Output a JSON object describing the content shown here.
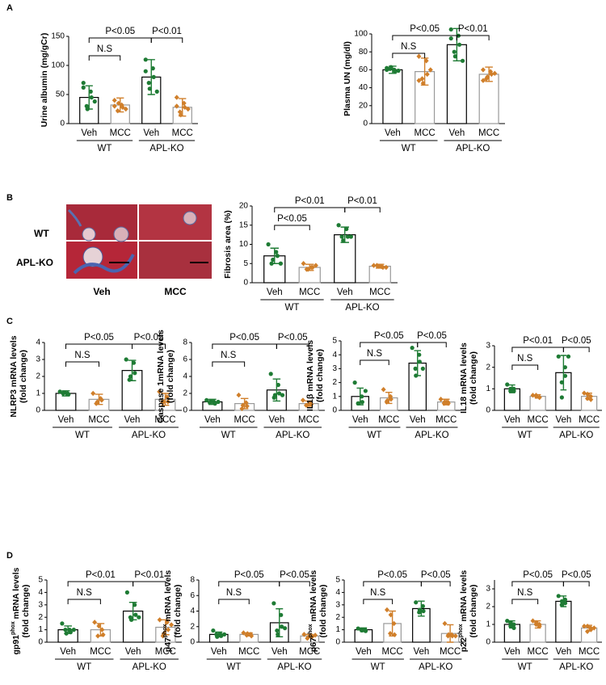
{
  "panels": [
    "A",
    "B",
    "C",
    "D"
  ],
  "histology": {
    "rows": [
      "WT",
      "APL-KO"
    ],
    "cols": [
      "Veh",
      "MCC"
    ]
  },
  "chart_data": [
    {
      "type": "bar",
      "ylabel": [
        [
          "Urine albumin (mg/gCr)"
        ]
      ],
      "categories": [
        "Veh",
        "MCC",
        "Veh",
        "MCC"
      ],
      "groups": [
        "WT",
        "APL-KO"
      ],
      "values": [
        45,
        32,
        80,
        28
      ],
      "errors": [
        20,
        12,
        30,
        15
      ],
      "points": [
        [
          62,
          55,
          45,
          30,
          25,
          38,
          70
        ],
        [
          40,
          32,
          28,
          22,
          35,
          25,
          30
        ],
        [
          110,
          95,
          80,
          70,
          60,
          55,
          90
        ],
        [
          45,
          35,
          28,
          20,
          15,
          25,
          30
        ]
      ],
      "bar_colors": [
        "#1e7b34",
        "#d07f2a",
        "#1e7b34",
        "#d07f2a"
      ],
      "ylim": [
        0,
        150
      ],
      "yticks": [
        0,
        50,
        100,
        150
      ],
      "brackets": [
        {
          "label": "N.S",
          "from": 0,
          "to": 1
        },
        {
          "label": "P<0.05",
          "from": 0,
          "to": 2
        },
        {
          "label": "P<0.01",
          "from": 2,
          "to": 3
        }
      ]
    },
    {
      "type": "bar",
      "ylabel": [
        [
          "Plasma UN (mg/dl)"
        ]
      ],
      "categories": [
        "Veh",
        "MCC",
        "Veh",
        "MCC"
      ],
      "groups": [
        "WT",
        "APL-KO"
      ],
      "values": [
        60,
        58,
        88,
        55
      ],
      "errors": [
        4,
        15,
        18,
        8
      ],
      "points": [
        [
          62,
          60,
          58,
          61,
          63,
          59,
          60
        ],
        [
          75,
          70,
          55,
          50,
          45,
          60,
          48
        ],
        [
          105,
          98,
          88,
          80,
          75,
          70,
          95
        ],
        [
          60,
          58,
          55,
          50,
          52,
          56,
          48
        ]
      ],
      "bar_colors": [
        "#1e7b34",
        "#d07f2a",
        "#1e7b34",
        "#d07f2a"
      ],
      "ylim": [
        0,
        100
      ],
      "yticks": [
        0,
        20,
        40,
        60,
        80,
        100
      ],
      "brackets": [
        {
          "label": "N.S",
          "from": 0,
          "to": 1
        },
        {
          "label": "P<0.05",
          "from": 0,
          "to": 2
        },
        {
          "label": "P<0.01",
          "from": 2,
          "to": 3
        }
      ]
    },
    {
      "type": "bar",
      "ylabel": [
        [
          "Fibrosis  area (%)"
        ]
      ],
      "categories": [
        "Veh",
        "MCC",
        "Veh",
        "MCC"
      ],
      "groups": [
        "WT",
        "APL-KO"
      ],
      "values": [
        7,
        4,
        12.5,
        4.3
      ],
      "errors": [
        2,
        0.8,
        2,
        0.5
      ],
      "points": [
        [
          10,
          8,
          7,
          5,
          6,
          5
        ],
        [
          5,
          4,
          4,
          3.5,
          3.5,
          4.5
        ],
        [
          15,
          14,
          12,
          12,
          11,
          12
        ],
        [
          4.5,
          4.2,
          4,
          4.5,
          4.3,
          4
        ]
      ],
      "bar_colors": [
        "#1e7b34",
        "#d07f2a",
        "#1e7b34",
        "#d07f2a"
      ],
      "ylim": [
        0,
        20
      ],
      "yticks": [
        0,
        5,
        10,
        15,
        20
      ],
      "brackets": [
        {
          "label": "P<0.05",
          "from": 0,
          "to": 1
        },
        {
          "label": "P<0.01",
          "from": 0,
          "to": 2
        },
        {
          "label": "P<0.01",
          "from": 2,
          "to": 3
        }
      ]
    },
    {
      "type": "bar",
      "ylabel": [
        [
          "NLRP3 mRNA levels"
        ],
        [
          "(fold change)"
        ]
      ],
      "categories": [
        "Veh",
        "MCC",
        "Veh",
        "MCC"
      ],
      "groups": [
        "WT",
        "APL-KO"
      ],
      "values": [
        1,
        0.65,
        2.35,
        0.65
      ],
      "errors": [
        0.15,
        0.3,
        0.6,
        0.35
      ],
      "points": [
        [
          1.1,
          1,
          0.95,
          1,
          1.05
        ],
        [
          1,
          0.7,
          0.6,
          0.4,
          0.5
        ],
        [
          3,
          2.8,
          2.2,
          1.8,
          2
        ],
        [
          1.1,
          0.8,
          0.5,
          0.5,
          0.5
        ]
      ],
      "bar_colors": [
        "#1e7b34",
        "#d07f2a",
        "#1e7b34",
        "#d07f2a"
      ],
      "ylim": [
        0,
        4
      ],
      "yticks": [
        0,
        1,
        2,
        3,
        4
      ],
      "brackets": [
        {
          "label": "N.S",
          "from": 0,
          "to": 1
        },
        {
          "label": "P<0.05",
          "from": 0,
          "to": 2
        },
        {
          "label": "P<0.05",
          "from": 2,
          "to": 3
        }
      ]
    },
    {
      "type": "bar",
      "ylabel": [
        [
          "Caspase 1mRNA levels"
        ],
        [
          "(fold change)"
        ]
      ],
      "categories": [
        "Veh",
        "MCC",
        "Veh",
        "MCC"
      ],
      "groups": [
        "WT",
        "APL-KO"
      ],
      "values": [
        1,
        0.8,
        2.4,
        0.8
      ],
      "errors": [
        0.3,
        0.6,
        1.3,
        0.3
      ],
      "points": [
        [
          1.2,
          1,
          0.8,
          0.9,
          1.1,
          1
        ],
        [
          1.8,
          0.9,
          0.5,
          0.2,
          0.6
        ],
        [
          4.3,
          3,
          2,
          1.5,
          1.8,
          1.8
        ],
        [
          1.2,
          0.9,
          0.7,
          0.6,
          0.6
        ]
      ],
      "bar_colors": [
        "#1e7b34",
        "#d07f2a",
        "#1e7b34",
        "#d07f2a"
      ],
      "ylim": [
        0,
        8
      ],
      "yticks": [
        0,
        2,
        4,
        6,
        8
      ],
      "brackets": [
        {
          "label": "N.S",
          "from": 0,
          "to": 1
        },
        {
          "label": "P<0.05",
          "from": 0,
          "to": 2
        },
        {
          "label": "P<0.05",
          "from": 2,
          "to": 3
        }
      ]
    },
    {
      "type": "bar",
      "ylabel": [
        [
          "IL1β mRNA levels"
        ],
        [
          "(fold change)"
        ]
      ],
      "categories": [
        "Veh",
        "MCC",
        "Veh",
        "MCC"
      ],
      "groups": [
        "WT",
        "APL-KO"
      ],
      "values": [
        1,
        0.9,
        3.4,
        0.6
      ],
      "errors": [
        0.6,
        0.4,
        0.9,
        0.2
      ],
      "points": [
        [
          2,
          1,
          0.6,
          0.5,
          0.5,
          1.4
        ],
        [
          1.5,
          1,
          0.8,
          0.6,
          0.7
        ],
        [
          4.5,
          4,
          3.5,
          3,
          2.5,
          3
        ],
        [
          0.8,
          0.6,
          0.5,
          0.5,
          0.6
        ]
      ],
      "bar_colors": [
        "#1e7b34",
        "#d07f2a",
        "#1e7b34",
        "#d07f2a"
      ],
      "ylim": [
        0,
        5
      ],
      "yticks": [
        0,
        1,
        2,
        3,
        4,
        5
      ],
      "brackets": [
        {
          "label": "N.S",
          "from": 0,
          "to": 1
        },
        {
          "label": "P<0.05",
          "from": 0,
          "to": 2
        },
        {
          "label": "P<0.05",
          "from": 2,
          "to": 3
        }
      ]
    },
    {
      "type": "bar",
      "ylabel": [
        [
          "IL18 mRNA levels"
        ],
        [
          "(fold change)"
        ]
      ],
      "categories": [
        "Veh",
        "MCC",
        "Veh",
        "MCC"
      ],
      "groups": [
        "WT",
        "APL-KO"
      ],
      "values": [
        1,
        0.65,
        1.75,
        0.65
      ],
      "errors": [
        0.18,
        0.08,
        0.8,
        0.15
      ],
      "points": [
        [
          1.2,
          1,
          0.9,
          0.9,
          1
        ],
        [
          0.7,
          0.6,
          0.6,
          0.7,
          0.65
        ],
        [
          2.5,
          2,
          1.6,
          1.3,
          0.6,
          2.5
        ],
        [
          0.8,
          0.65,
          0.5,
          0.55,
          0.75
        ]
      ],
      "bar_colors": [
        "#1e7b34",
        "#d07f2a",
        "#1e7b34",
        "#d07f2a"
      ],
      "ylim": [
        0,
        3
      ],
      "yticks": [
        0,
        1,
        2,
        3
      ],
      "brackets": [
        {
          "label": "N.S",
          "from": 0,
          "to": 1
        },
        {
          "label": "P<0.01",
          "from": 0,
          "to": 2
        },
        {
          "label": "P<0.05",
          "from": 2,
          "to": 3
        }
      ]
    },
    {
      "type": "bar",
      "ylabel": [
        [
          "gp91",
          {
            "text": "phox",
            "sup": true
          },
          " mRNA levels"
        ],
        [
          "(fold change)"
        ]
      ],
      "categories": [
        "Veh",
        "MCC",
        "Veh",
        "MCC"
      ],
      "groups": [
        "WT",
        "APL-KO"
      ],
      "values": [
        1,
        1,
        2.5,
        1.2
      ],
      "errors": [
        0.3,
        0.5,
        0.7,
        0.6
      ],
      "points": [
        [
          1.5,
          1,
          0.8,
          1,
          0.7,
          1
        ],
        [
          1.6,
          1,
          0.6,
          0.5,
          1.3
        ],
        [
          4,
          3,
          2.2,
          2,
          1.8,
          2
        ],
        [
          1.8,
          1.6,
          1,
          0.5,
          0.7,
          1.4
        ]
      ],
      "bar_colors": [
        "#1e7b34",
        "#d07f2a",
        "#1e7b34",
        "#d07f2a"
      ],
      "ylim": [
        0,
        5
      ],
      "yticks": [
        0,
        1,
        2,
        3,
        4,
        5
      ],
      "brackets": [
        {
          "label": "N.S",
          "from": 0,
          "to": 1
        },
        {
          "label": "P<0.01",
          "from": 0,
          "to": 2
        },
        {
          "label": "P<0.01",
          "from": 2,
          "to": 3
        }
      ]
    },
    {
      "type": "bar",
      "ylabel": [
        [
          "p47",
          {
            "text": "phox",
            "sup": true
          },
          " mRNA levels"
        ],
        [
          "(fold change)"
        ]
      ],
      "categories": [
        "Veh",
        "MCC",
        "Veh",
        "MCC"
      ],
      "groups": [
        "WT",
        "APL-KO"
      ],
      "values": [
        1,
        1,
        2.5,
        0.8
      ],
      "errors": [
        0.3,
        0.2,
        1.8,
        0.2
      ],
      "points": [
        [
          1.5,
          1,
          0.8,
          1,
          0.7,
          1
        ],
        [
          1.2,
          1,
          0.8,
          0.9,
          1.1
        ],
        [
          5,
          3.5,
          2,
          1.5,
          1,
          1.8
        ],
        [
          1,
          0.8,
          0.7,
          0.5,
          0.6,
          0.9
        ]
      ],
      "bar_colors": [
        "#1e7b34",
        "#d07f2a",
        "#1e7b34",
        "#d07f2a"
      ],
      "ylim": [
        0,
        8
      ],
      "yticks": [
        0,
        2,
        4,
        6,
        8
      ],
      "brackets": [
        {
          "label": "N.S",
          "from": 0,
          "to": 1
        },
        {
          "label": "P<0.05",
          "from": 0,
          "to": 2
        },
        {
          "label": "P<0.05",
          "from": 2,
          "to": 3
        }
      ]
    },
    {
      "type": "bar",
      "ylabel": [
        [
          "p67",
          {
            "text": "phox",
            "sup": true
          },
          " mRNA levels"
        ],
        [
          "(fold change)"
        ]
      ],
      "categories": [
        "Veh",
        "MCC",
        "Veh",
        "MCC"
      ],
      "groups": [
        "WT",
        "APL-KO"
      ],
      "values": [
        1,
        1.5,
        2.7,
        0.7
      ],
      "errors": [
        0.15,
        1,
        0.6,
        0.7
      ],
      "points": [
        [
          1.1,
          1,
          0.9,
          1,
          0.95
        ],
        [
          2.6,
          1.5,
          0.6,
          0.7,
          2.2
        ],
        [
          3.2,
          2.9,
          2.5,
          2.4,
          2.6
        ],
        [
          1.5,
          0.6,
          0.5,
          0.5,
          0.6,
          0.5
        ]
      ],
      "bar_colors": [
        "#1e7b34",
        "#d07f2a",
        "#1e7b34",
        "#d07f2a"
      ],
      "ylim": [
        0,
        5
      ],
      "yticks": [
        0,
        1,
        2,
        3,
        4,
        5
      ],
      "brackets": [
        {
          "label": "N.S",
          "from": 0,
          "to": 1
        },
        {
          "label": "P<0.05",
          "from": 0,
          "to": 2
        },
        {
          "label": "P<0.05",
          "from": 2,
          "to": 3
        }
      ]
    },
    {
      "type": "bar",
      "ylabel": [
        [
          "p22",
          {
            "text": "phox",
            "sup": true
          },
          " mRNA levels"
        ],
        [
          "(fold change)"
        ]
      ],
      "categories": [
        "Veh",
        "MCC",
        "Veh",
        "MCC"
      ],
      "groups": [
        "WT",
        "APL-KO"
      ],
      "values": [
        1,
        1,
        2.3,
        0.8
      ],
      "errors": [
        0.2,
        0.2,
        0.3,
        0.15
      ],
      "points": [
        [
          1.2,
          1,
          0.8,
          1.1,
          0.9
        ],
        [
          1.2,
          1,
          0.9,
          1,
          1.1
        ],
        [
          2.6,
          2.4,
          2.2,
          2.1,
          2.3
        ],
        [
          0.9,
          0.8,
          0.7,
          0.6,
          0.9,
          0.8
        ]
      ],
      "bar_colors": [
        "#1e7b34",
        "#d07f2a",
        "#1e7b34",
        "#d07f2a"
      ],
      "ylim": [
        0,
        3.5
      ],
      "yticks": [
        0,
        1,
        2,
        3
      ],
      "brackets": [
        {
          "label": "N.S",
          "from": 0,
          "to": 1
        },
        {
          "label": "P<0.05",
          "from": 0,
          "to": 2
        },
        {
          "label": "P<0.05",
          "from": 2,
          "to": 3
        }
      ]
    }
  ]
}
